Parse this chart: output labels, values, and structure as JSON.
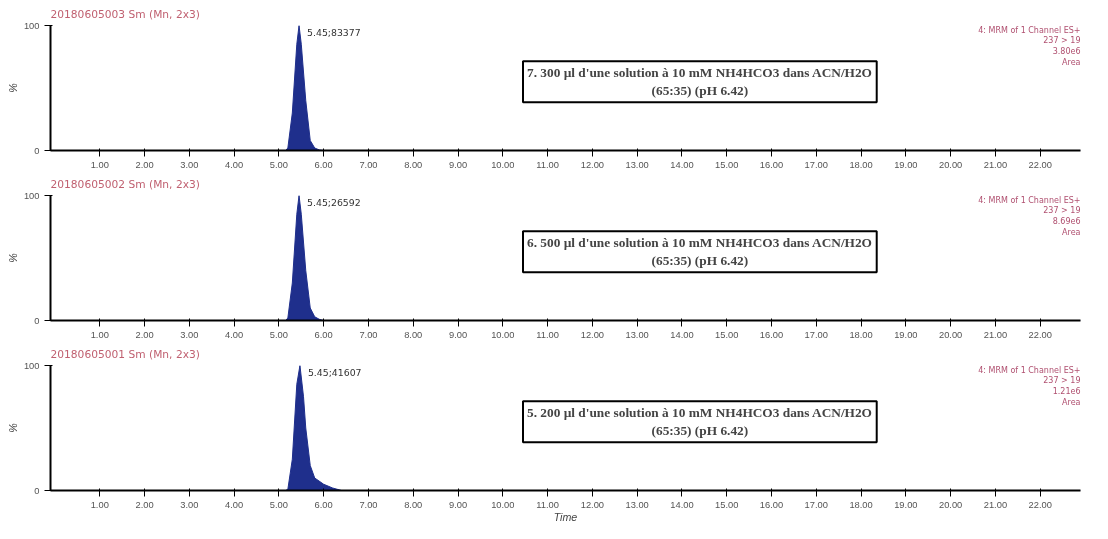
{
  "chart_data": [
    {
      "type": "area",
      "title": "20180605003 Sm (Mn, 2x3)",
      "ylabel": "%",
      "xlim": [
        -0.1,
        22.9
      ],
      "ylim": [
        0,
        100
      ],
      "yticks": [
        0,
        100
      ],
      "grid": false,
      "xticks": [
        {
          "value": 1,
          "label": "1.00"
        },
        {
          "value": 2,
          "label": "2.00"
        },
        {
          "value": 3,
          "label": "3.00"
        },
        {
          "value": 4,
          "label": "4.00"
        },
        {
          "value": 5,
          "label": "5.00"
        },
        {
          "value": 6,
          "label": "6.00"
        },
        {
          "value": 7,
          "label": "7.00"
        },
        {
          "value": 8,
          "label": "8.00"
        },
        {
          "value": 9,
          "label": "9.00"
        },
        {
          "value": 10,
          "label": "10.00"
        },
        {
          "value": 11,
          "label": "11.00"
        },
        {
          "value": 12,
          "label": "12.00"
        },
        {
          "value": 13,
          "label": "13.00"
        },
        {
          "value": 14,
          "label": "14.00"
        },
        {
          "value": 15,
          "label": "15.00"
        },
        {
          "value": 16,
          "label": "16.00"
        },
        {
          "value": 17,
          "label": "17.00"
        },
        {
          "value": 18,
          "label": "18.00"
        },
        {
          "value": 19,
          "label": "19.00"
        },
        {
          "value": 20,
          "label": "20.00"
        },
        {
          "value": 21,
          "label": "21.00"
        },
        {
          "value": 22,
          "label": "22.00"
        }
      ],
      "series": [
        {
          "color": "#1f2f8c",
          "x": [
            -0.1,
            5.15,
            5.2,
            5.3,
            5.4,
            5.45,
            5.5,
            5.6,
            5.7,
            5.8,
            5.9,
            6.0,
            22.9
          ],
          "values": [
            0,
            0,
            2,
            30,
            85,
            100,
            85,
            40,
            8,
            2,
            0.5,
            0,
            0
          ]
        }
      ],
      "annotations": [
        "7. 300 µl d'une solution à 10 mM NH4HCO3 dans ACN/H2O\n(65:35) (pH 6.42)",
        "4: MRM of 1 Channel ES+\n237 > 19\n3.80e6\nArea",
        "5.45;83377"
      ]
    },
    {
      "type": "area",
      "title": "20180605002 Sm (Mn, 2x3)",
      "ylabel": "%",
      "xlim": [
        -0.1,
        22.9
      ],
      "ylim": [
        0,
        100
      ],
      "yticks": [
        0,
        100
      ],
      "grid": false,
      "xticks": [
        {
          "value": 1,
          "label": "1.00"
        },
        {
          "value": 2,
          "label": "2.00"
        },
        {
          "value": 3,
          "label": "3.00"
        },
        {
          "value": 4,
          "label": "4.00"
        },
        {
          "value": 5,
          "label": "5.00"
        },
        {
          "value": 6,
          "label": "6.00"
        },
        {
          "value": 7,
          "label": "7.00"
        },
        {
          "value": 8,
          "label": "8.00"
        },
        {
          "value": 9,
          "label": "9.00"
        },
        {
          "value": 10,
          "label": "10.00"
        },
        {
          "value": 11,
          "label": "11.00"
        },
        {
          "value": 12,
          "label": "12.00"
        },
        {
          "value": 13,
          "label": "13.00"
        },
        {
          "value": 14,
          "label": "14.00"
        },
        {
          "value": 15,
          "label": "15.00"
        },
        {
          "value": 16,
          "label": "16.00"
        },
        {
          "value": 17,
          "label": "17.00"
        },
        {
          "value": 18,
          "label": "18.00"
        },
        {
          "value": 19,
          "label": "19.00"
        },
        {
          "value": 20,
          "label": "20.00"
        },
        {
          "value": 21,
          "label": "21.00"
        },
        {
          "value": 22,
          "label": "22.00"
        }
      ],
      "series": [
        {
          "color": "#1f2f8c",
          "x": [
            -0.1,
            5.15,
            5.2,
            5.3,
            5.4,
            5.45,
            5.5,
            5.6,
            5.7,
            5.8,
            5.9,
            6.0,
            22.9
          ],
          "values": [
            0,
            0,
            2,
            30,
            85,
            100,
            85,
            40,
            10,
            3,
            1,
            0,
            0
          ]
        }
      ],
      "annotations": [
        "6. 500 µl d'une solution à 10 mM NH4HCO3 dans ACN/H2O\n(65:35) (pH 6.42)",
        "4: MRM of 1 Channel ES+\n237 > 19\n8.69e6\nArea",
        "5.45;26592"
      ]
    },
    {
      "type": "area",
      "title": "20180605001 Sm (Mn, 2x3)",
      "ylabel": "%",
      "xlabel": "Time",
      "xlim": [
        -0.1,
        22.9
      ],
      "ylim": [
        0,
        100
      ],
      "yticks": [
        0,
        100
      ],
      "grid": false,
      "xticks": [
        {
          "value": 1,
          "label": "1.00"
        },
        {
          "value": 2,
          "label": "2.00"
        },
        {
          "value": 3,
          "label": "3.00"
        },
        {
          "value": 4,
          "label": "4.00"
        },
        {
          "value": 5,
          "label": "5.00"
        },
        {
          "value": 6,
          "label": "6.00"
        },
        {
          "value": 7,
          "label": "7.00"
        },
        {
          "value": 8,
          "label": "8.00"
        },
        {
          "value": 9,
          "label": "9.00"
        },
        {
          "value": 10,
          "label": "10.00"
        },
        {
          "value": 11,
          "label": "11.00"
        },
        {
          "value": 12,
          "label": "12.00"
        },
        {
          "value": 13,
          "label": "13.00"
        },
        {
          "value": 14,
          "label": "14.00"
        },
        {
          "value": 15,
          "label": "15.00"
        },
        {
          "value": 16,
          "label": "16.00"
        },
        {
          "value": 17,
          "label": "17.00"
        },
        {
          "value": 18,
          "label": "18.00"
        },
        {
          "value": 19,
          "label": "19.00"
        },
        {
          "value": 20,
          "label": "20.00"
        },
        {
          "value": 21,
          "label": "21.00"
        },
        {
          "value": 22,
          "label": "22.00"
        }
      ],
      "series": [
        {
          "color": "#1f2f8c",
          "x": [
            -0.1,
            5.15,
            5.2,
            5.3,
            5.4,
            5.47,
            5.55,
            5.6,
            5.7,
            5.8,
            6.0,
            6.2,
            6.4,
            22.9
          ],
          "values": [
            0,
            0,
            1,
            25,
            85,
            100,
            75,
            50,
            20,
            10,
            5,
            2,
            0,
            0
          ]
        }
      ],
      "annotations": [
        "5. 200 µl d'une solution à 10 mM NH4HCO3 dans ACN/H2O\n(65:35) (pH 6.42)",
        "4: MRM of 1 Channel ES+\n237 > 19\n1.21e6\nArea",
        "5.45;41607"
      ]
    }
  ]
}
